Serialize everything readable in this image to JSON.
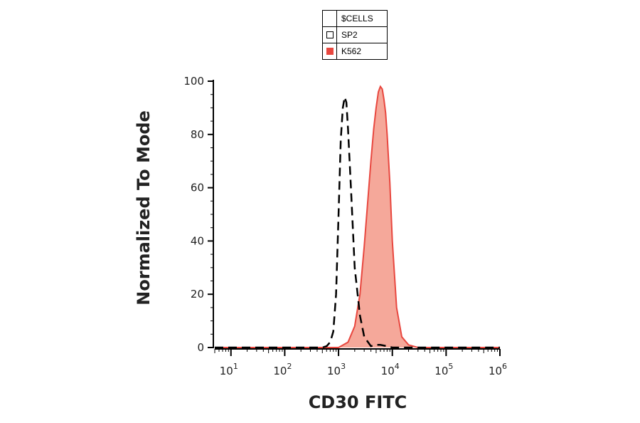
{
  "chart_data": {
    "type": "area",
    "title": "",
    "xlabel": "CD30 FITC",
    "ylabel": "Normalized To Mode",
    "x_scale": "log",
    "xlim": [
      5,
      1000000
    ],
    "ylim": [
      0,
      100
    ],
    "x_ticks": [
      {
        "value": 10,
        "base": "10",
        "exp": "1"
      },
      {
        "value": 100,
        "base": "10",
        "exp": "2"
      },
      {
        "value": 1000,
        "base": "10",
        "exp": "3"
      },
      {
        "value": 10000,
        "base": "10",
        "exp": "4"
      },
      {
        "value": 100000,
        "base": "10",
        "exp": "5"
      },
      {
        "value": 1000000,
        "base": "10",
        "exp": "6"
      }
    ],
    "y_ticks": [
      0,
      20,
      40,
      60,
      80,
      100
    ],
    "legend": {
      "title": "$CELLS",
      "placement": "top-center",
      "entries": [
        {
          "name": "SP2",
          "style": "dashed outline",
          "color": "#000000"
        },
        {
          "name": "K562",
          "style": "filled",
          "color": "#e8473f"
        }
      ]
    },
    "series": [
      {
        "name": "SP2",
        "color": "#000000",
        "line": "dashed",
        "x": [
          5,
          500,
          600,
          700,
          800,
          900,
          1000,
          1100,
          1200,
          1300,
          1400,
          1500,
          1700,
          2000,
          2500,
          3000,
          4000,
          5000,
          6000,
          8000,
          10000,
          20000,
          1000000
        ],
        "y": [
          0,
          0,
          0.5,
          2,
          6,
          20,
          50,
          78,
          90,
          94,
          92,
          82,
          60,
          30,
          12,
          4,
          0.5,
          1,
          1,
          0.5,
          0,
          0,
          0
        ]
      },
      {
        "name": "K562",
        "color": "#e8473f",
        "fill": "#f5a89a",
        "line": "solid",
        "x": [
          5,
          1000,
          1500,
          2000,
          2500,
          3000,
          3500,
          4000,
          4500,
          5000,
          5500,
          6000,
          6500,
          7000,
          7500,
          8000,
          9000,
          10000,
          12000,
          15000,
          20000,
          30000,
          1000000
        ],
        "y": [
          0,
          0,
          2,
          8,
          20,
          38,
          55,
          70,
          82,
          90,
          96,
          98,
          97,
          93,
          88,
          80,
          62,
          40,
          15,
          4,
          1,
          0,
          0
        ]
      }
    ]
  }
}
